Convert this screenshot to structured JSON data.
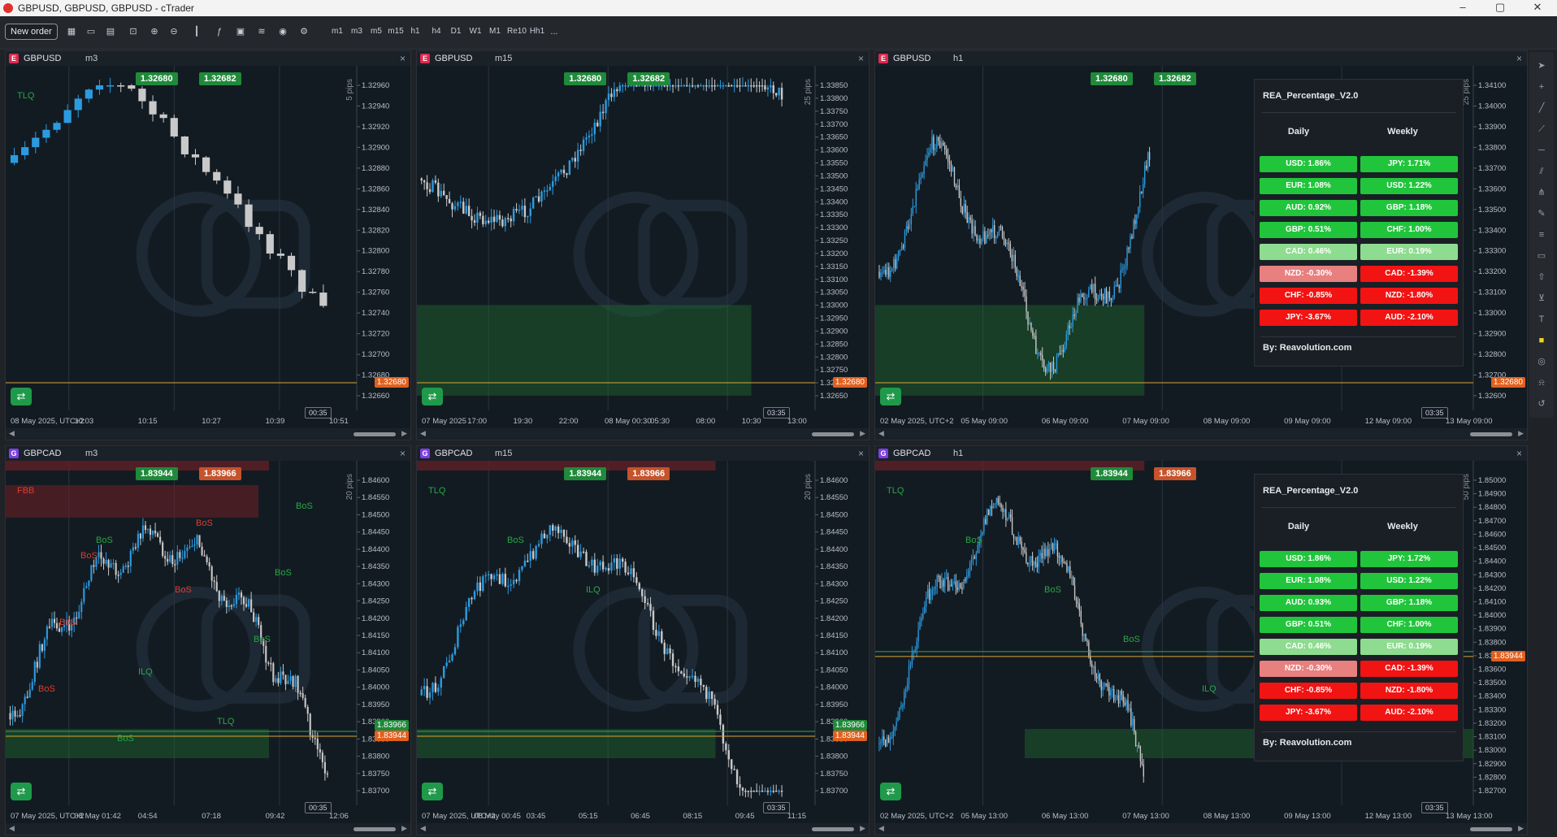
{
  "window": {
    "title": "GBPUSD, GBPUSD, GBPUSD - cTrader"
  },
  "toolbar": {
    "new_order": "New order",
    "timeframes": [
      "m1",
      "m3",
      "m5",
      "m15",
      "h1",
      "h4",
      "D1",
      "W1",
      "M1",
      "Re10",
      "Hh1"
    ],
    "more": "..."
  },
  "panels": [
    {
      "symbol": "GBPUSD",
      "badge": "E",
      "badge_color": "#e0294e",
      "timeframe": "m3",
      "sell": "1.32680",
      "buy": "1.32682",
      "price_label": "1.32680",
      "timer": "00:35",
      "pips": "5 pips",
      "y_ticks": [
        "1.32960",
        "1.32940",
        "1.32920",
        "1.32900",
        "1.32880",
        "1.32860",
        "1.32840",
        "1.32820",
        "1.32800",
        "1.32780",
        "1.32760",
        "1.32740",
        "1.32720",
        "1.32700",
        "1.32680",
        "1.32660"
      ],
      "x_ticks": [
        "08 May 2025, UTC+2",
        "10:03",
        "10:15",
        "10:27",
        "10:39",
        "10:51"
      ],
      "annotations": [
        "TLQ"
      ]
    },
    {
      "symbol": "GBPUSD",
      "badge": "E",
      "badge_color": "#e0294e",
      "timeframe": "m15",
      "sell": "1.32680",
      "buy": "1.32682",
      "price_label": "1.32680",
      "timer": "03:35",
      "pips": "25 pips",
      "y_ticks": [
        "1.33850",
        "1.33800",
        "1.33750",
        "1.33700",
        "1.33650",
        "1.33600",
        "1.33550",
        "1.33500",
        "1.33450",
        "1.33400",
        "1.33350",
        "1.33300",
        "1.33250",
        "1.33200",
        "1.33150",
        "1.33100",
        "1.33050",
        "1.33000",
        "1.32950",
        "1.32900",
        "1.32850",
        "1.32800",
        "1.32750",
        "1.32700",
        "1.32650"
      ],
      "x_ticks": [
        "07 May 2025",
        "17:00",
        "19:30",
        "22:00",
        "08 May 00:30",
        "05:30",
        "08:00",
        "10:30",
        "13:00"
      ]
    },
    {
      "symbol": "GBPUSD",
      "badge": "E",
      "badge_color": "#e0294e",
      "timeframe": "h1",
      "sell": "1.32680",
      "buy": "1.32682",
      "price_label": "1.32680",
      "timer": "03:35",
      "pips": "25 pips",
      "y_ticks": [
        "1.34100",
        "1.34000",
        "1.33900",
        "1.33800",
        "1.33700",
        "1.33600",
        "1.33500",
        "1.33400",
        "1.33300",
        "1.33200",
        "1.33100",
        "1.33000",
        "1.32900",
        "1.32800",
        "1.32700",
        "1.32600"
      ],
      "x_ticks": [
        "02 May 2025, UTC+2",
        "05 May 09:00",
        "06 May 09:00",
        "07 May 09:00",
        "08 May 09:00",
        "09 May 09:00",
        "12 May 09:00",
        "13 May 09:00"
      ],
      "indicator": {
        "title": "REA_Percentage_V2.0",
        "daily_header": "Daily",
        "weekly_header": "Weekly",
        "daily": [
          {
            "text": "USD: 1.86%",
            "color": "#21c53c"
          },
          {
            "text": "EUR: 1.08%",
            "color": "#21c53c"
          },
          {
            "text": "AUD: 0.92%",
            "color": "#21c53c"
          },
          {
            "text": "GBP: 0.51%",
            "color": "#21c53c"
          },
          {
            "text": "CAD: 0.46%",
            "color": "#8ddc8f"
          },
          {
            "text": "NZD: -0.30%",
            "color": "#e88080"
          },
          {
            "text": "CHF: -0.85%",
            "color": "#f21313"
          },
          {
            "text": "JPY: -3.67%",
            "color": "#f21313"
          }
        ],
        "weekly": [
          {
            "text": "JPY: 1.71%",
            "color": "#21c53c"
          },
          {
            "text": "USD: 1.22%",
            "color": "#21c53c"
          },
          {
            "text": "GBP: 1.18%",
            "color": "#21c53c"
          },
          {
            "text": "CHF: 1.00%",
            "color": "#21c53c"
          },
          {
            "text": "EUR: 0.19%",
            "color": "#8ddc8f"
          },
          {
            "text": "CAD: -1.39%",
            "color": "#f21313"
          },
          {
            "text": "NZD: -1.80%",
            "color": "#f21313"
          },
          {
            "text": "AUD: -2.10%",
            "color": "#f21313"
          }
        ],
        "footer": "By: Reavolution.com"
      }
    },
    {
      "symbol": "GBPCAD",
      "badge": "G",
      "badge_color": "#7b3fe4",
      "timeframe": "m3",
      "sell": "1.83944",
      "buy": "1.83966",
      "price_label": "1.83944",
      "price_label_2": "1.83966",
      "timer": "00:35",
      "pips": "20 pips",
      "y_ticks": [
        "1.84600",
        "1.84550",
        "1.84500",
        "1.84450",
        "1.84400",
        "1.84350",
        "1.84300",
        "1.84250",
        "1.84200",
        "1.84150",
        "1.84100",
        "1.84050",
        "1.84000",
        "1.83950",
        "1.83900",
        "1.83850",
        "1.83800",
        "1.83750",
        "1.83700"
      ],
      "x_ticks": [
        "07 May 2025, UTC+2",
        "08 May 01:42",
        "04:54",
        "07:18",
        "09:42",
        "12:06"
      ],
      "annotations": [
        "FBB",
        "BoS",
        "BoS",
        "BoS",
        "BoS",
        "BoS",
        "BoS",
        "BoS",
        "BoS",
        "ILQ",
        "TLQ",
        "BoS",
        "BoS"
      ]
    },
    {
      "symbol": "GBPCAD",
      "badge": "G",
      "badge_color": "#7b3fe4",
      "timeframe": "m15",
      "sell": "1.83944",
      "buy": "1.83966",
      "price_label": "1.83944",
      "price_label_2": "1.83966",
      "timer": "03:35",
      "pips": "20 pips",
      "y_ticks": [
        "1.84600",
        "1.84550",
        "1.84500",
        "1.84450",
        "1.84400",
        "1.84350",
        "1.84300",
        "1.84250",
        "1.84200",
        "1.84150",
        "1.84100",
        "1.84050",
        "1.84000",
        "1.83950",
        "1.83900",
        "1.83850",
        "1.83800",
        "1.83750",
        "1.83700"
      ],
      "x_ticks": [
        "07 May 2025, UTC+2",
        "08 May 00:45",
        "03:45",
        "05:15",
        "06:45",
        "08:15",
        "09:45",
        "11:15"
      ],
      "annotations": [
        "TLQ",
        "BoS",
        "ILQ"
      ]
    },
    {
      "symbol": "GBPCAD",
      "badge": "G",
      "badge_color": "#7b3fe4",
      "timeframe": "h1",
      "sell": "1.83944",
      "buy": "1.83966",
      "price_label": "1.83944",
      "timer": "03:35",
      "pips": "50 pips",
      "y_ticks": [
        "1.85000",
        "1.84900",
        "1.84800",
        "1.84700",
        "1.84600",
        "1.84500",
        "1.84400",
        "1.84300",
        "1.84200",
        "1.84100",
        "1.84000",
        "1.83900",
        "1.83800",
        "1.83700",
        "1.83600",
        "1.83500",
        "1.83400",
        "1.83300",
        "1.83200",
        "1.83100",
        "1.83000",
        "1.82900",
        "1.82800",
        "1.82700"
      ],
      "x_ticks": [
        "02 May 2025, UTC+2",
        "05 May 13:00",
        "06 May 13:00",
        "07 May 13:00",
        "08 May 13:00",
        "09 May 13:00",
        "12 May 13:00",
        "13 May 13:00"
      ],
      "annotations": [
        "TLQ",
        "BoS",
        "BoS",
        "BoS",
        "ILQ"
      ],
      "indicator": {
        "title": "REA_Percentage_V2.0",
        "daily_header": "Daily",
        "weekly_header": "Weekly",
        "daily": [
          {
            "text": "USD: 1.86%",
            "color": "#21c53c"
          },
          {
            "text": "EUR: 1.08%",
            "color": "#21c53c"
          },
          {
            "text": "AUD: 0.93%",
            "color": "#21c53c"
          },
          {
            "text": "GBP: 0.51%",
            "color": "#21c53c"
          },
          {
            "text": "CAD: 0.46%",
            "color": "#8ddc8f"
          },
          {
            "text": "NZD: -0.30%",
            "color": "#e88080"
          },
          {
            "text": "CHF: -0.85%",
            "color": "#f21313"
          },
          {
            "text": "JPY: -3.67%",
            "color": "#f21313"
          }
        ],
        "weekly": [
          {
            "text": "JPY: 1.72%",
            "color": "#21c53c"
          },
          {
            "text": "USD: 1.22%",
            "color": "#21c53c"
          },
          {
            "text": "GBP: 1.18%",
            "color": "#21c53c"
          },
          {
            "text": "CHF: 1.00%",
            "color": "#21c53c"
          },
          {
            "text": "EUR: 0.19%",
            "color": "#8ddc8f"
          },
          {
            "text": "CAD: -1.39%",
            "color": "#f21313"
          },
          {
            "text": "NZD: -1.80%",
            "color": "#f21313"
          },
          {
            "text": "AUD: -2.10%",
            "color": "#f21313"
          }
        ],
        "footer": "By: Reavolution.com"
      }
    }
  ],
  "colors": {
    "bull": "#2b9be0",
    "bear": "#c9c9c9",
    "zone": "#1e6b2e",
    "supply": "#6b1f27",
    "price_line": "#d9a53a"
  }
}
